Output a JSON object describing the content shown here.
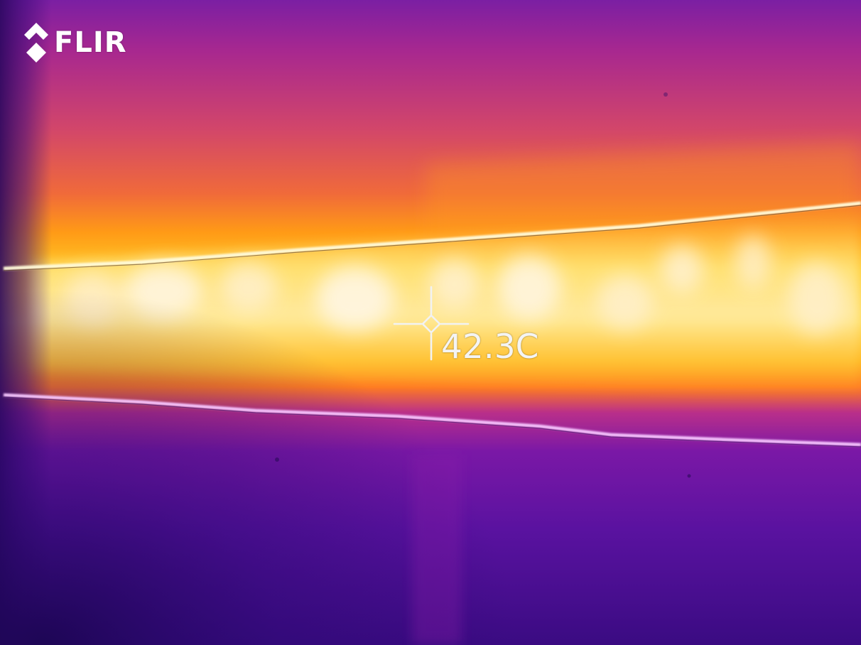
{
  "brand": {
    "logo_text": "FLIR",
    "logo_icon": "flir-diamond-icon"
  },
  "spot_meter": {
    "icon": "crosshair-icon",
    "reading": "42.3C"
  },
  "palette": {
    "name": "iron",
    "cold": "#2a0a6e",
    "cool": "#5b0fa0",
    "mid": "#c2357a",
    "warm": "#ff7a1a",
    "hot": "#ffc21f",
    "hottest": "#fff3d6"
  }
}
